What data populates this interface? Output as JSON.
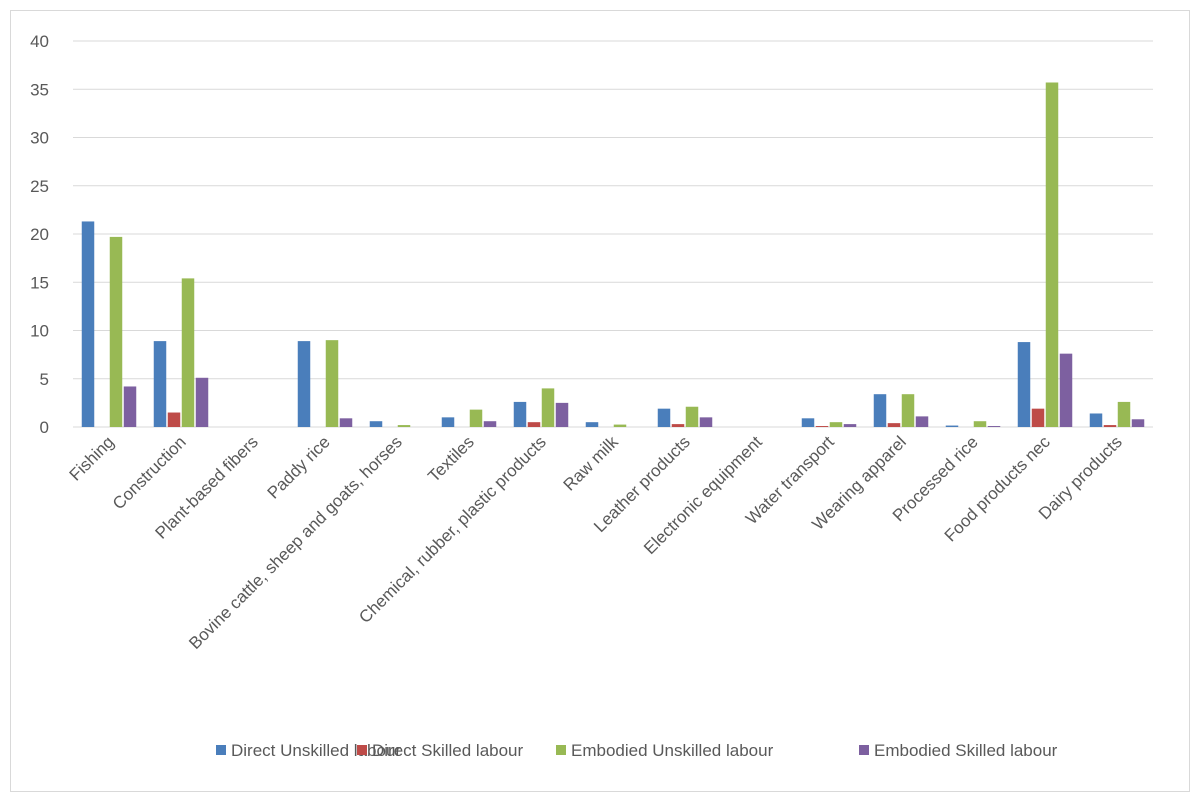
{
  "chart_data": {
    "type": "bar",
    "title": "",
    "xlabel": "",
    "ylabel": "",
    "ylim": [
      0,
      40
    ],
    "yticks": [
      0,
      5,
      10,
      15,
      20,
      25,
      30,
      35,
      40
    ],
    "grid": true,
    "legend_position": "bottom",
    "categories": [
      "Fishing",
      "Construction",
      "Plant-based fibers",
      "Paddy rice",
      "Bovine cattle, sheep and goats, horses",
      "Textiles",
      "Chemical, rubber, plastic products",
      "Raw milk",
      "Leather products",
      "Electronic equipment",
      "Water transport",
      "Wearing apparel",
      "Processed rice",
      "Food products nec",
      "Dairy products"
    ],
    "series": [
      {
        "name": "Direct  Unskilled labour",
        "color": "#4a7ebb",
        "values": [
          21.3,
          8.9,
          0,
          8.9,
          0.6,
          1.0,
          2.6,
          0.5,
          1.9,
          0,
          0.9,
          3.4,
          0.15,
          8.8,
          1.4
        ]
      },
      {
        "name": "Direct  Skilled labour",
        "color": "#be4b48",
        "values": [
          0,
          1.5,
          0,
          0,
          0,
          0,
          0.5,
          0,
          0.3,
          0,
          0.1,
          0.4,
          0,
          1.9,
          0.2
        ]
      },
      {
        "name": "Embodied Unskilled labour",
        "color": "#98b954",
        "values": [
          19.7,
          15.4,
          0,
          9.0,
          0.2,
          1.8,
          4.0,
          0.25,
          2.1,
          0,
          0.5,
          3.4,
          0.6,
          35.7,
          2.6
        ]
      },
      {
        "name": "Embodied Skilled labour",
        "color": "#7d60a0",
        "values": [
          4.2,
          5.1,
          0,
          0.9,
          0,
          0.6,
          2.5,
          0,
          1.0,
          0,
          0.3,
          1.1,
          0.1,
          7.6,
          0.8
        ]
      }
    ]
  }
}
